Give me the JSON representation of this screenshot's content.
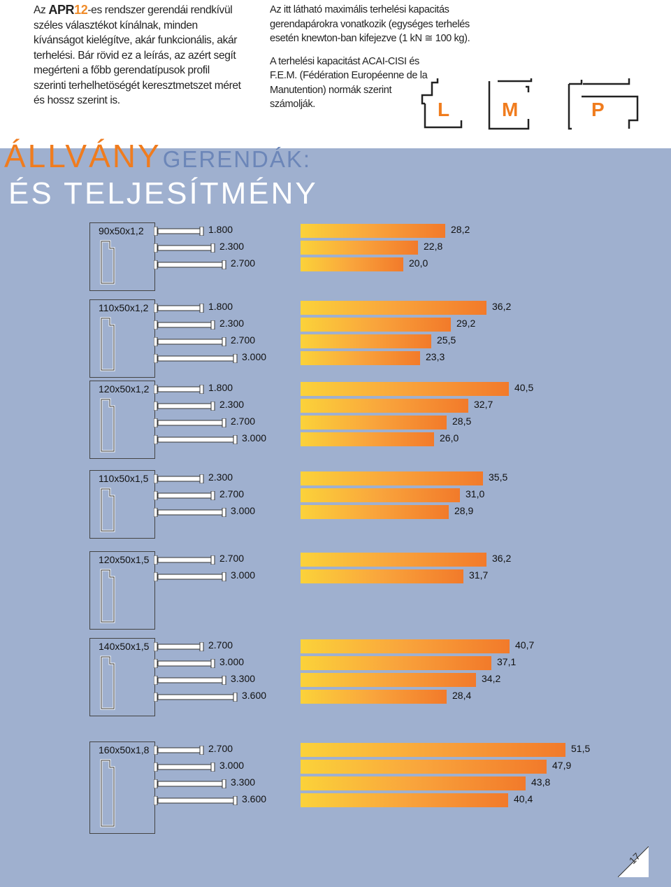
{
  "intro": {
    "prefix": "Az",
    "logo_apr": "APR",
    "logo_num": "12",
    "text": "-es rendszer gerendái rendkívül széles választékot kínálnak, minden kívánságot kielégítve, akár funkcionális, akár terhelési. Bár rövid ez a leírás, az azért segít megérteni a főbb gerendatípusok profil szerinti terhelhetöségét keresztmetszet méret és hossz szerint is."
  },
  "note": {
    "p1": "Az itt látható maximális terhelési kapacitás gerendapárokra vonatkozik (egységes terhelés esetén knewton-ban kifejezve (1 kN ≅ 100 kg).",
    "p2": "A terhelési kapacitást ACAI-CISI és F.E.M. (Fédération Européenne de la Manutention) normák szerint számolják."
  },
  "lmp": [
    "L",
    "M",
    "P"
  ],
  "title": {
    "allvany": "ÁLLVÁNY",
    "gerendak": "GERENDÁK:",
    "es": "ÉS TELJESÍTMÉNY"
  },
  "colors": {
    "accent": "#f07c1e",
    "panel": "#9fb0cf",
    "title_blue": "#6c86b8"
  },
  "groups": [
    {
      "profile": "90x50x1,2",
      "rows": [
        {
          "length": "1.800",
          "value": "28,2",
          "num": 28.2
        },
        {
          "length": "2.300",
          "value": "22,8",
          "num": 22.8
        },
        {
          "length": "2.700",
          "value": "20,0",
          "num": 20.0
        }
      ]
    },
    {
      "profile": "110x50x1,2",
      "rows": [
        {
          "length": "1.800",
          "value": "36,2",
          "num": 36.2
        },
        {
          "length": "2.300",
          "value": "29,2",
          "num": 29.2
        },
        {
          "length": "2.700",
          "value": "25,5",
          "num": 25.5
        },
        {
          "length": "3.000",
          "value": "23,3",
          "num": 23.3
        }
      ]
    },
    {
      "profile": "120x50x1,2",
      "rows": [
        {
          "length": "1.800",
          "value": "40,5",
          "num": 40.5
        },
        {
          "length": "2.300",
          "value": "32,7",
          "num": 32.7
        },
        {
          "length": "2.700",
          "value": "28,5",
          "num": 28.5
        },
        {
          "length": "3.000",
          "value": "26,0",
          "num": 26.0
        }
      ]
    },
    {
      "profile": "110x50x1,5",
      "rows": [
        {
          "length": "2.300",
          "value": "35,5",
          "num": 35.5
        },
        {
          "length": "2.700",
          "value": "31,0",
          "num": 31.0
        },
        {
          "length": "3.000",
          "value": "28,9",
          "num": 28.9
        }
      ]
    },
    {
      "profile": "120x50x1,5",
      "rows": [
        {
          "length": "2.700",
          "value": "36,2",
          "num": 36.2
        },
        {
          "length": "3.000",
          "value": "31,7",
          "num": 31.7
        }
      ]
    },
    {
      "profile": "140x50x1,5",
      "rows": [
        {
          "length": "2.700",
          "value": "40,7",
          "num": 40.7
        },
        {
          "length": "3.000",
          "value": "37,1",
          "num": 37.1
        },
        {
          "length": "3.300",
          "value": "34,2",
          "num": 34.2
        },
        {
          "length": "3.600",
          "value": "28,4",
          "num": 28.4
        }
      ]
    },
    {
      "profile": "160x50x1,8",
      "rows": [
        {
          "length": "2.700",
          "value": "51,5",
          "num": 51.5
        },
        {
          "length": "3.000",
          "value": "47,9",
          "num": 47.9
        },
        {
          "length": "3.300",
          "value": "43,8",
          "num": 43.8
        },
        {
          "length": "3.600",
          "value": "40,4",
          "num": 40.4
        }
      ]
    }
  ],
  "page_number": "17"
}
